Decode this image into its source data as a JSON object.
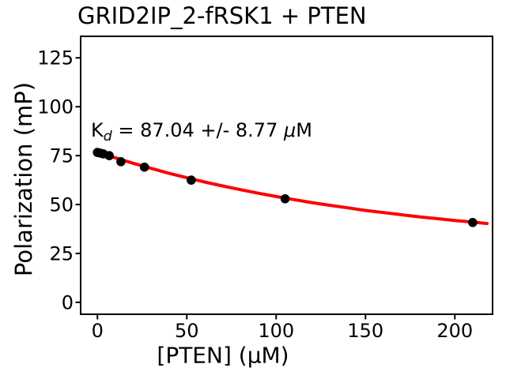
{
  "chart_data": {
    "type": "scatter",
    "title": "GRID2IP_2-fRSK1 + PTEN",
    "xlabel": "[PTEN] (μM)",
    "ylabel": "Polarization (mP)",
    "x_ticks": [
      0,
      50,
      100,
      150,
      200
    ],
    "y_ticks": [
      0,
      25,
      50,
      75,
      100,
      125
    ],
    "xlim": [
      -9.4,
      221.1
    ],
    "ylim": [
      -6.1,
      136.0
    ],
    "grid": false,
    "legend": false,
    "annotation": {
      "symbol": "K",
      "subscript": "d",
      "value_text": " = 87.04 +/- 8.77 ",
      "mu": "μ",
      "unit": "M",
      "kd_value": 87.04,
      "kd_error": 8.77
    },
    "colors": {
      "curve": "#ff0000",
      "marker": "#000000",
      "axis": "#000000",
      "background": "#ffffff"
    },
    "series": [
      {
        "name": "measured-points",
        "type": "scatter",
        "color": "#000000",
        "x": [
          0,
          1.6,
          3.3,
          6.6,
          13.1,
          26.3,
          52.5,
          105,
          210
        ],
        "y": [
          76.6,
          76.3,
          75.9,
          75.0,
          71.9,
          69.1,
          62.5,
          52.9,
          40.8
        ]
      },
      {
        "name": "binding-fit-curve",
        "type": "line",
        "color": "#ff0000",
        "x": [
          0,
          10,
          20,
          30,
          40,
          50,
          60,
          70,
          80,
          90,
          100,
          110,
          120,
          130,
          140,
          150,
          160,
          170,
          180,
          190,
          200,
          210,
          218
        ],
        "y": [
          76.8,
          73.9,
          71.1,
          68.5,
          66.0,
          63.7,
          61.5,
          59.5,
          57.6,
          55.8,
          54.1,
          52.5,
          51.0,
          49.6,
          48.3,
          47.0,
          45.9,
          44.8,
          43.7,
          42.8,
          41.8,
          41.0,
          40.3
        ]
      }
    ]
  }
}
